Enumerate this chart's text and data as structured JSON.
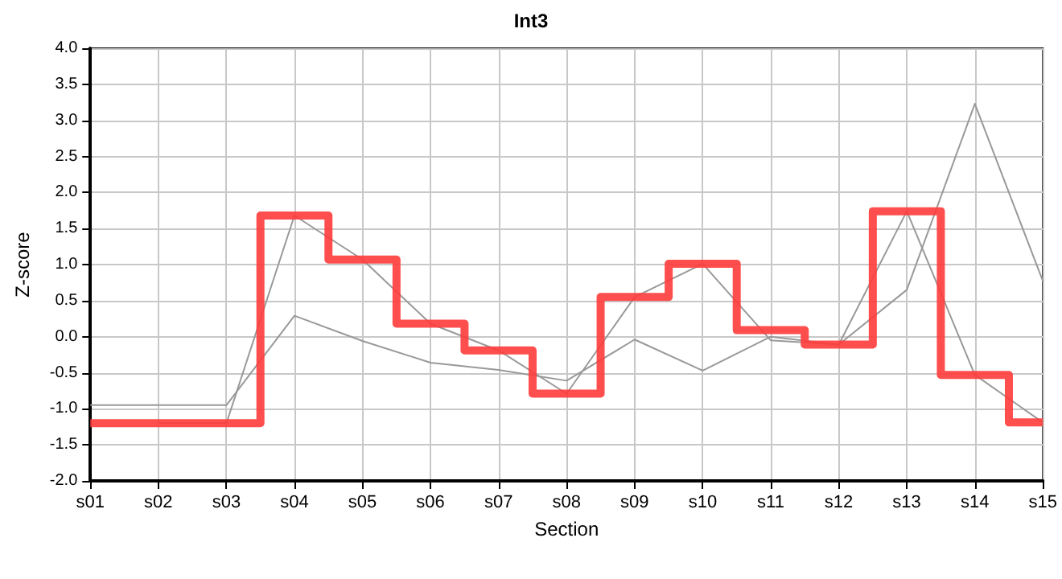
{
  "chart_data": {
    "type": "line",
    "title": "Int3",
    "xlabel": "Section",
    "ylabel": "Z-score",
    "categories": [
      "s01",
      "s02",
      "s03",
      "s04",
      "s05",
      "s06",
      "s07",
      "s08",
      "s09",
      "s10",
      "s11",
      "s12",
      "s13",
      "s14",
      "s15"
    ],
    "series": [
      {
        "color": "#999999",
        "values": [
          null,
          -1.2,
          -1.2,
          1.68,
          1.07,
          0.18,
          -0.19,
          -0.79,
          0.55,
          1.01,
          -0.05,
          -0.11,
          1.74,
          -0.53,
          -1.19
        ]
      },
      {
        "color": "#999999",
        "values": [
          -0.95,
          -0.95,
          -0.95,
          0.29,
          -0.06,
          -0.36,
          -0.46,
          -0.61,
          -0.04,
          -0.47,
          0.0,
          -0.11,
          0.65,
          3.23,
          0.77
        ]
      },
      {
        "type": "step",
        "color": "#ff3b3b",
        "values": [
          -1.2,
          -1.2,
          -1.2,
          1.68,
          1.07,
          0.18,
          -0.19,
          -0.79,
          0.55,
          1.01,
          0.09,
          -0.11,
          1.74,
          -0.53,
          -1.19
        ]
      }
    ],
    "ylim": [
      -2,
      4
    ],
    "yticks": [
      {
        "value": -2,
        "label": "-2.0"
      },
      {
        "value": -1.5,
        "label": "-1.5"
      },
      {
        "value": -1,
        "label": "-1.0"
      },
      {
        "value": -0.5,
        "label": "-0.5"
      },
      {
        "value": 0,
        "label": "0.0"
      },
      {
        "value": 0.5,
        "label": "0.5"
      },
      {
        "value": 1,
        "label": "1.0"
      },
      {
        "value": 1.5,
        "label": "1.5"
      },
      {
        "value": 2,
        "label": "2.0"
      },
      {
        "value": 2.5,
        "label": "2.5"
      },
      {
        "value": 3,
        "label": "3.0"
      },
      {
        "value": 3.5,
        "label": "3.5"
      },
      {
        "value": 4,
        "label": "4.0"
      }
    ],
    "grid": true,
    "marker": "none",
    "line_style": "solid"
  }
}
